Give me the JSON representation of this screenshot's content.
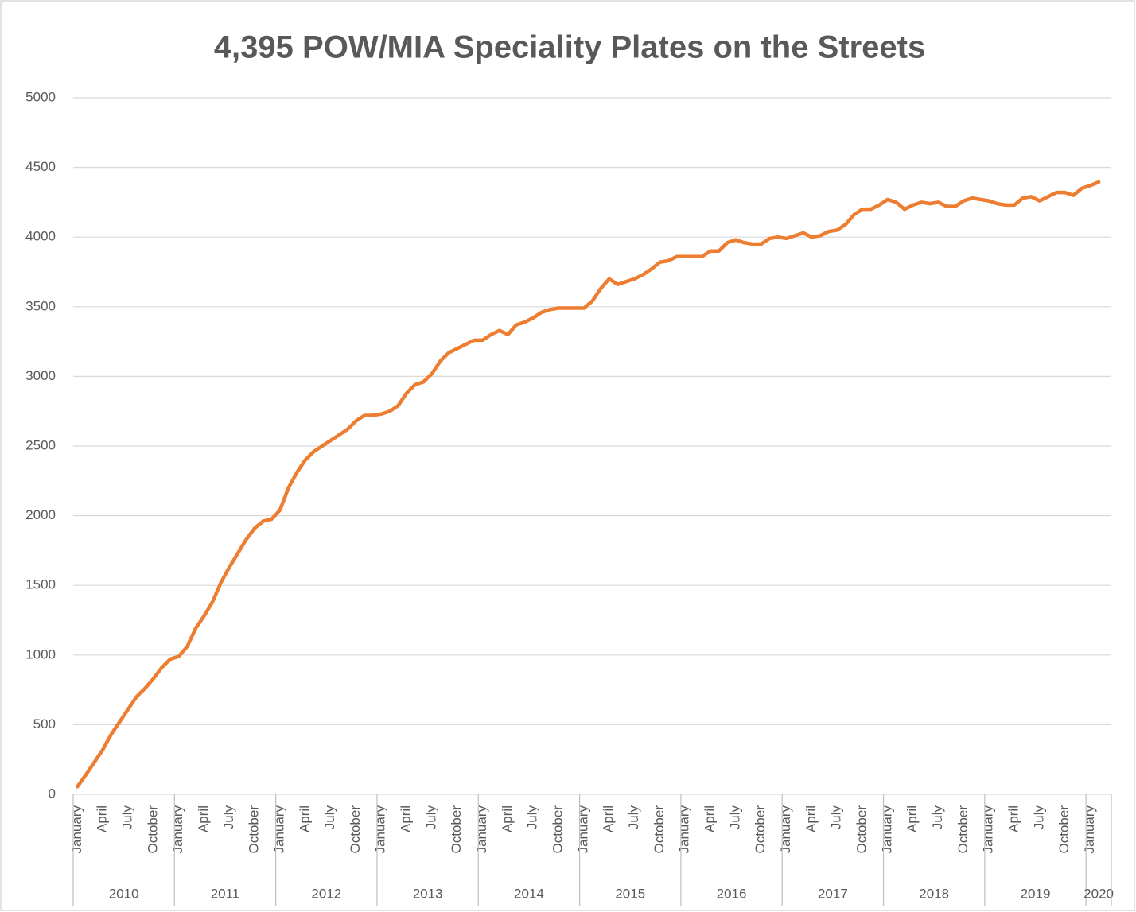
{
  "chart_data": {
    "type": "line",
    "title": "4,395  POW/MIA Speciality Plates on the Streets",
    "categories": [
      "January",
      null,
      null,
      "April",
      null,
      null,
      "July",
      null,
      null,
      "October",
      null,
      null,
      "January",
      null,
      null,
      "April",
      null,
      null,
      "July",
      null,
      null,
      "October",
      null,
      null,
      "January",
      null,
      null,
      "April",
      null,
      null,
      "July",
      null,
      null,
      "October",
      null,
      null,
      "January",
      null,
      null,
      "April",
      null,
      null,
      "July",
      null,
      null,
      "October",
      null,
      null,
      "January",
      null,
      null,
      "April",
      null,
      null,
      "July",
      null,
      null,
      "October",
      null,
      null,
      "January",
      null,
      null,
      "April",
      null,
      null,
      "July",
      null,
      null,
      "October",
      null,
      null,
      "January",
      null,
      null,
      "April",
      null,
      null,
      "July",
      null,
      null,
      "October",
      null,
      null,
      "January",
      null,
      null,
      "April",
      null,
      null,
      "July",
      null,
      null,
      "October",
      null,
      null,
      "January",
      null,
      null,
      "April",
      null,
      null,
      "July",
      null,
      null,
      "October",
      null,
      null,
      "January",
      null,
      null,
      "April",
      null,
      null,
      "July",
      null,
      null,
      "October",
      null,
      null,
      "January",
      null,
      null
    ],
    "year_groups": [
      {
        "label": "2010",
        "count": 12
      },
      {
        "label": "2011",
        "count": 12
      },
      {
        "label": "2012",
        "count": 12
      },
      {
        "label": "2013",
        "count": 12
      },
      {
        "label": "2014",
        "count": 12
      },
      {
        "label": "2015",
        "count": 12
      },
      {
        "label": "2016",
        "count": 12
      },
      {
        "label": "2017",
        "count": 12
      },
      {
        "label": "2018",
        "count": 12
      },
      {
        "label": "2019",
        "count": 12
      },
      {
        "label": "2020",
        "count": 3
      }
    ],
    "series": [
      {
        "name": "POW/MIA",
        "color": "#ED7D31",
        "values": [
          55,
          140,
          230,
          320,
          430,
          520,
          610,
          700,
          760,
          830,
          910,
          970,
          990,
          1060,
          1190,
          1280,
          1380,
          1520,
          1630,
          1730,
          1830,
          1910,
          1960,
          1975,
          2040,
          2200,
          2310,
          2400,
          2460,
          2500,
          2540,
          2580,
          2620,
          2680,
          2720,
          2720,
          2730,
          2750,
          2790,
          2880,
          2940,
          2960,
          3020,
          3110,
          3170,
          3200,
          3230,
          3260,
          3260,
          3300,
          3330,
          3300,
          3370,
          3390,
          3420,
          3460,
          3480,
          3490,
          3490,
          3490,
          3490,
          3540,
          3630,
          3700,
          3660,
          3680,
          3700,
          3730,
          3770,
          3820,
          3830,
          3860,
          3860,
          3860,
          3860,
          3900,
          3900,
          3960,
          3980,
          3960,
          3950,
          3950,
          3990,
          4000,
          3990,
          4010,
          4030,
          4000,
          4010,
          4040,
          4050,
          4090,
          4160,
          4200,
          4200,
          4230,
          4270,
          4250,
          4200,
          4230,
          4250,
          4240,
          4250,
          4220,
          4220,
          4260,
          4280,
          4270,
          4260,
          4240,
          4230,
          4230,
          4280,
          4290,
          4260,
          4290,
          4320,
          4320,
          4300,
          4350,
          4370,
          4395,
          null
        ]
      }
    ],
    "ylim": [
      0,
      5000
    ],
    "yticks": [
      0,
      500,
      1000,
      1500,
      2000,
      2500,
      3000,
      3500,
      4000,
      4500,
      5000
    ],
    "grid": true
  }
}
